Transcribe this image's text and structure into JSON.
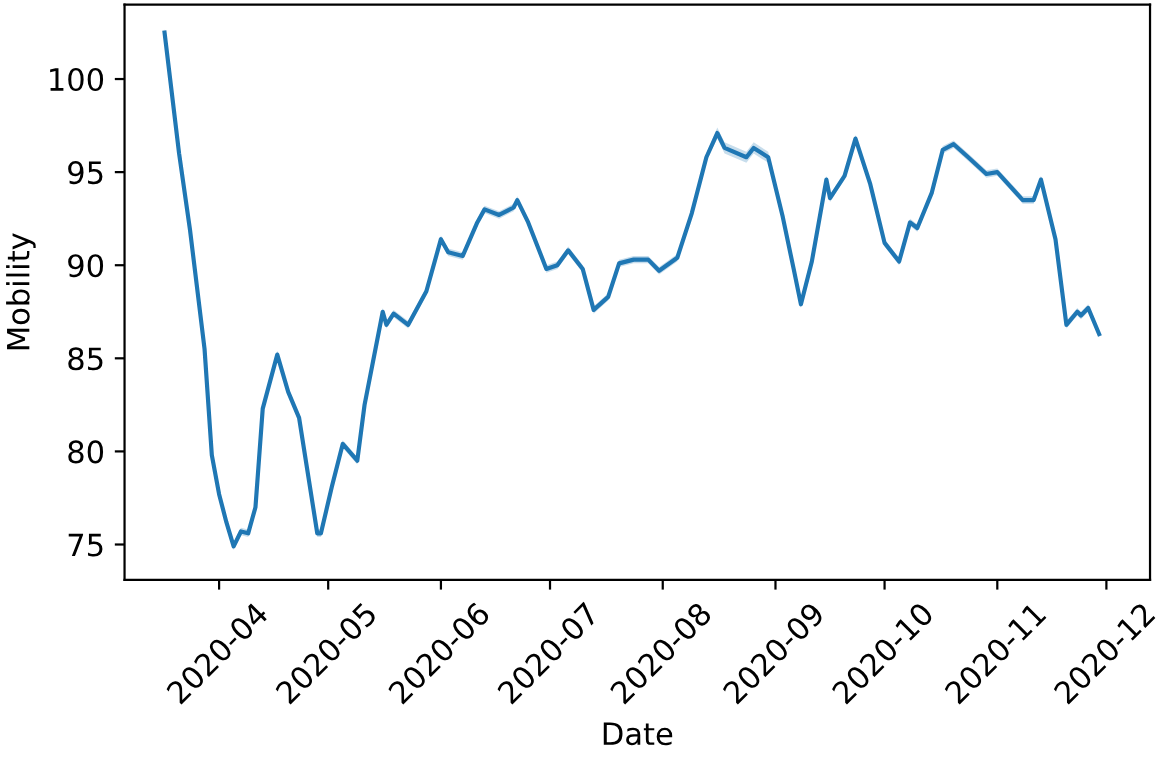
{
  "chart_data": {
    "type": "line",
    "xlabel": "Date",
    "ylabel": "Mobility",
    "xlim": [
      "2020-03-06",
      "2020-12-13"
    ],
    "ylim": [
      73.1,
      104.0
    ],
    "xticks": [
      {
        "value": "2020-04-01",
        "label": "2020-04"
      },
      {
        "value": "2020-05-01",
        "label": "2020-05"
      },
      {
        "value": "2020-06-01",
        "label": "2020-06"
      },
      {
        "value": "2020-07-01",
        "label": "2020-07"
      },
      {
        "value": "2020-08-01",
        "label": "2020-08"
      },
      {
        "value": "2020-09-01",
        "label": "2020-09"
      },
      {
        "value": "2020-10-01",
        "label": "2020-10"
      },
      {
        "value": "2020-11-01",
        "label": "2020-11"
      },
      {
        "value": "2020-12-01",
        "label": "2020-12"
      }
    ],
    "yticks": [
      75,
      80,
      85,
      90,
      95,
      100
    ],
    "grid": false,
    "marker": "none",
    "line_style": "solid",
    "x": [
      "2020-03-17",
      "2020-03-21",
      "2020-03-24",
      "2020-03-28",
      "2020-03-30",
      "2020-04-01",
      "2020-04-03",
      "2020-04-05",
      "2020-04-07",
      "2020-04-09",
      "2020-04-11",
      "2020-04-13",
      "2020-04-17",
      "2020-04-20",
      "2020-04-23",
      "2020-04-28",
      "2020-04-29",
      "2020-05-02",
      "2020-05-05",
      "2020-05-09",
      "2020-05-11",
      "2020-05-16",
      "2020-05-17",
      "2020-05-19",
      "2020-05-23",
      "2020-05-28",
      "2020-06-01",
      "2020-06-03",
      "2020-06-07",
      "2020-06-11",
      "2020-06-13",
      "2020-06-17",
      "2020-06-21",
      "2020-06-22",
      "2020-06-25",
      "2020-06-30",
      "2020-07-03",
      "2020-07-06",
      "2020-07-10",
      "2020-07-13",
      "2020-07-17",
      "2020-07-20",
      "2020-07-24",
      "2020-07-28",
      "2020-07-31",
      "2020-08-05",
      "2020-08-09",
      "2020-08-13",
      "2020-08-16",
      "2020-08-18",
      "2020-08-24",
      "2020-08-26",
      "2020-08-30",
      "2020-09-03",
      "2020-09-06",
      "2020-09-08",
      "2020-09-11",
      "2020-09-15",
      "2020-09-16",
      "2020-09-20",
      "2020-09-23",
      "2020-09-27",
      "2020-10-01",
      "2020-10-05",
      "2020-10-08",
      "2020-10-10",
      "2020-10-14",
      "2020-10-17",
      "2020-10-20",
      "2020-10-24",
      "2020-10-29",
      "2020-11-01",
      "2020-11-08",
      "2020-11-11",
      "2020-11-13",
      "2020-11-17",
      "2020-11-20",
      "2020-11-23",
      "2020-11-24",
      "2020-11-26",
      "2020-11-29"
    ],
    "series": [
      {
        "color": "#1f77b4",
        "values": [
          102.5,
          96.0,
          91.9,
          85.5,
          79.8,
          77.7,
          76.2,
          74.9,
          75.7,
          75.6,
          77.0,
          82.3,
          85.2,
          83.2,
          81.8,
          75.6,
          75.6,
          78.1,
          80.4,
          79.5,
          82.5,
          87.5,
          86.8,
          87.4,
          86.8,
          88.6,
          91.4,
          90.7,
          90.5,
          92.3,
          93.0,
          92.7,
          93.1,
          93.5,
          92.3,
          89.8,
          90.0,
          90.8,
          89.8,
          87.6,
          88.3,
          90.1,
          90.3,
          90.3,
          89.7,
          90.4,
          92.8,
          95.8,
          97.1,
          96.3,
          95.8,
          96.3,
          95.8,
          92.6,
          89.8,
          87.9,
          90.2,
          94.6,
          93.6,
          94.8,
          96.8,
          94.4,
          91.2,
          90.2,
          92.3,
          92.0,
          93.9,
          96.2,
          96.5,
          95.8,
          94.9,
          95.0,
          93.5,
          93.5,
          94.6,
          91.4,
          86.8,
          87.5,
          87.3,
          87.7,
          86.3
        ],
        "lower": [
          102.3,
          95.8,
          91.7,
          85.3,
          79.6,
          77.5,
          76.0,
          74.7,
          75.5,
          75.4,
          76.8,
          82.1,
          85.0,
          83.0,
          81.6,
          75.4,
          75.4,
          77.9,
          80.2,
          79.3,
          82.3,
          87.3,
          86.6,
          87.2,
          86.6,
          88.4,
          91.2,
          90.5,
          90.3,
          92.1,
          92.8,
          92.5,
          92.9,
          93.3,
          92.1,
          89.6,
          89.8,
          90.6,
          89.6,
          87.4,
          88.1,
          89.9,
          90.1,
          90.1,
          89.5,
          90.2,
          92.6,
          95.6,
          96.8,
          96.0,
          95.5,
          96.0,
          95.5,
          92.4,
          89.6,
          87.7,
          90.0,
          94.4,
          93.4,
          94.6,
          96.6,
          94.2,
          91.0,
          90.0,
          92.1,
          91.8,
          93.7,
          96.0,
          96.3,
          95.6,
          94.7,
          94.8,
          93.3,
          93.3,
          94.4,
          91.2,
          86.6,
          87.3,
          87.1,
          87.5,
          86.1
        ],
        "upper": [
          102.7,
          96.2,
          92.1,
          85.7,
          80.0,
          77.9,
          76.4,
          75.1,
          75.9,
          75.8,
          77.2,
          82.5,
          85.4,
          83.4,
          82.0,
          75.8,
          75.8,
          78.3,
          80.6,
          79.7,
          82.7,
          87.7,
          87.0,
          87.6,
          87.0,
          88.8,
          91.6,
          90.9,
          90.7,
          92.5,
          93.2,
          92.9,
          93.3,
          93.7,
          92.5,
          90.0,
          90.2,
          91.0,
          90.0,
          87.8,
          88.5,
          90.3,
          90.5,
          90.5,
          89.9,
          90.6,
          93.0,
          96.0,
          97.4,
          96.6,
          96.1,
          96.6,
          96.1,
          92.8,
          90.0,
          88.1,
          90.4,
          94.8,
          93.8,
          95.0,
          97.0,
          94.6,
          91.4,
          90.4,
          92.5,
          92.2,
          94.1,
          96.4,
          96.7,
          96.0,
          95.1,
          95.2,
          93.7,
          93.7,
          94.8,
          91.6,
          87.0,
          87.7,
          87.5,
          87.9,
          86.5
        ]
      }
    ]
  }
}
